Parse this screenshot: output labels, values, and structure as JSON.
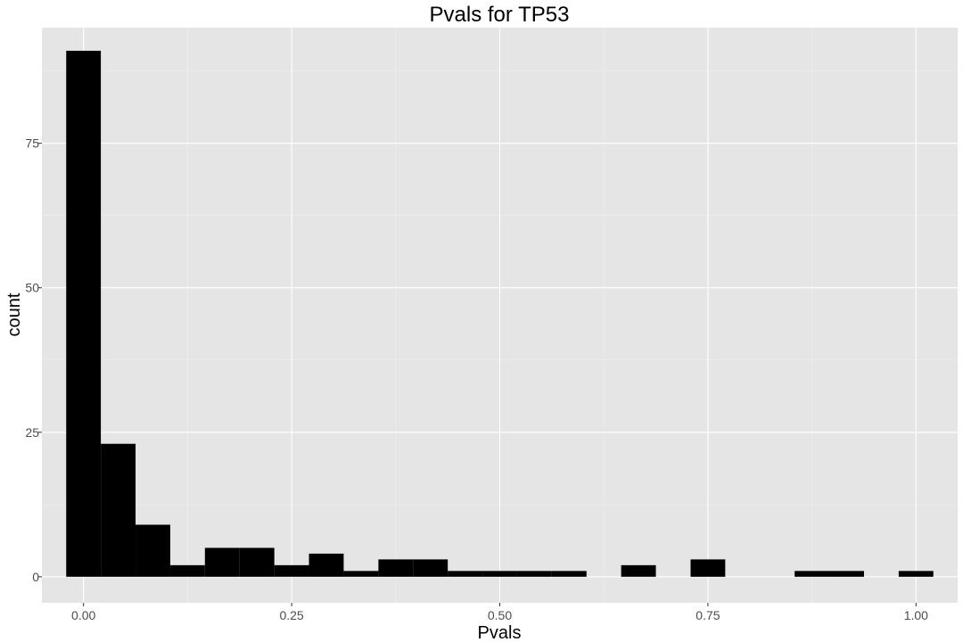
{
  "chart_data": {
    "type": "bar",
    "title": "Pvals for TP53",
    "xlabel": "Pvals",
    "ylabel": "count",
    "xlim": [
      -0.05,
      1.05
    ],
    "ylim": [
      -4.5,
      95
    ],
    "x_ticks": [
      0.0,
      0.25,
      0.5,
      0.75,
      1.0
    ],
    "x_tick_labels": [
      "0.00",
      "0.25",
      "0.50",
      "0.75",
      "1.00"
    ],
    "y_ticks": [
      0,
      25,
      50,
      75
    ],
    "y_tick_labels": [
      "0",
      "25",
      "50",
      "75"
    ],
    "grid": true,
    "bin_width": 0.041667,
    "bins": [
      {
        "x0": -0.0208,
        "x1": 0.0208,
        "count": 91
      },
      {
        "x0": 0.0208,
        "x1": 0.0625,
        "count": 23
      },
      {
        "x0": 0.0625,
        "x1": 0.1042,
        "count": 9
      },
      {
        "x0": 0.1042,
        "x1": 0.1458,
        "count": 2
      },
      {
        "x0": 0.1458,
        "x1": 0.1875,
        "count": 5
      },
      {
        "x0": 0.1875,
        "x1": 0.2292,
        "count": 5
      },
      {
        "x0": 0.2292,
        "x1": 0.2708,
        "count": 2
      },
      {
        "x0": 0.2708,
        "x1": 0.3125,
        "count": 4
      },
      {
        "x0": 0.3125,
        "x1": 0.3542,
        "count": 1
      },
      {
        "x0": 0.3542,
        "x1": 0.3958,
        "count": 3
      },
      {
        "x0": 0.3958,
        "x1": 0.4375,
        "count": 3
      },
      {
        "x0": 0.4375,
        "x1": 0.4792,
        "count": 1
      },
      {
        "x0": 0.4792,
        "x1": 0.5208,
        "count": 1
      },
      {
        "x0": 0.5208,
        "x1": 0.5625,
        "count": 1
      },
      {
        "x0": 0.5625,
        "x1": 0.6042,
        "count": 1
      },
      {
        "x0": 0.6458,
        "x1": 0.6875,
        "count": 2
      },
      {
        "x0": 0.7292,
        "x1": 0.7708,
        "count": 3
      },
      {
        "x0": 0.8542,
        "x1": 0.8958,
        "count": 1
      },
      {
        "x0": 0.8958,
        "x1": 0.9375,
        "count": 1
      },
      {
        "x0": 0.9792,
        "x1": 1.0208,
        "count": 1
      }
    ],
    "colors": {
      "panel": "#e5e5e5",
      "bar": "#000000",
      "grid": "#ffffff",
      "tick_text": "#4d4d4d"
    }
  }
}
